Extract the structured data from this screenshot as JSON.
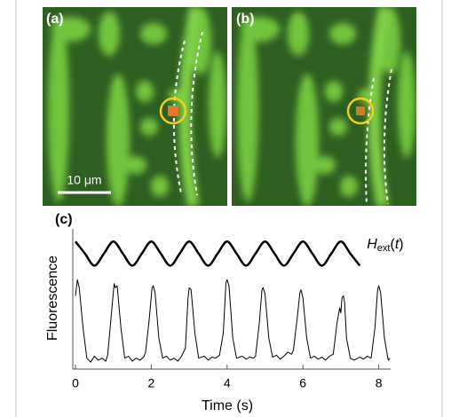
{
  "images": {
    "a": {
      "label": "(a)",
      "scale_bar": "10 μm"
    },
    "b": {
      "label": "(b)"
    }
  },
  "chart_data": {
    "type": "line",
    "panel_label": "(c)",
    "xlabel": "Time (s)",
    "ylabel": "Fluorescence",
    "xlim": [
      0,
      8.3
    ],
    "xticks": [
      0,
      2,
      4,
      6,
      8
    ],
    "ylim": [
      0,
      1.35
    ],
    "grid": false,
    "series": [
      {
        "color": "#000000",
        "x": [
          0,
          0.05,
          0.1,
          0.2,
          0.3,
          0.4,
          0.5,
          0.6,
          0.7,
          0.8,
          0.85,
          0.95,
          1.02,
          1.05,
          1.1,
          1.2,
          1.3,
          1.4,
          1.5,
          1.6,
          1.7,
          1.8,
          1.85,
          1.95,
          2.02,
          2.05,
          2.1,
          2.2,
          2.3,
          2.4,
          2.5,
          2.6,
          2.7,
          2.8,
          2.9,
          2.97,
          3.0,
          3.05,
          3.15,
          3.25,
          3.4,
          3.5,
          3.6,
          3.7,
          3.8,
          3.9,
          3.97,
          4.0,
          4.05,
          4.15,
          4.25,
          4.4,
          4.5,
          4.6,
          4.7,
          4.75,
          4.85,
          4.92,
          4.95,
          5.0,
          5.1,
          5.2,
          5.3,
          5.4,
          5.5,
          5.6,
          5.7,
          5.75,
          5.85,
          5.92,
          5.95,
          6.0,
          6.1,
          6.2,
          6.3,
          6.4,
          6.5,
          6.6,
          6.7,
          6.8,
          6.9,
          6.97,
          7.0,
          7.03,
          7.07,
          7.1,
          7.15,
          7.25,
          7.35,
          7.5,
          7.6,
          7.7,
          7.8,
          7.9,
          7.97,
          8.0,
          8.05,
          8.15,
          8.25,
          8.3
        ],
        "values": [
          0.72,
          0.88,
          0.8,
          0.4,
          0.1,
          0.06,
          0.12,
          0.08,
          0.1,
          0.07,
          0.13,
          0.55,
          0.84,
          0.8,
          0.82,
          0.4,
          0.1,
          0.12,
          0.07,
          0.1,
          0.08,
          0.11,
          0.16,
          0.5,
          0.8,
          0.82,
          0.75,
          0.3,
          0.1,
          0.12,
          0.08,
          0.1,
          0.07,
          0.12,
          0.2,
          0.7,
          0.8,
          0.78,
          0.35,
          0.1,
          0.12,
          0.08,
          0.11,
          0.1,
          0.13,
          0.35,
          0.85,
          0.88,
          0.82,
          0.3,
          0.1,
          0.12,
          0.09,
          0.11,
          0.1,
          0.12,
          0.45,
          0.78,
          0.8,
          0.74,
          0.3,
          0.11,
          0.13,
          0.09,
          0.12,
          0.16,
          0.14,
          0.18,
          0.5,
          0.75,
          0.78,
          0.7,
          0.3,
          0.1,
          0.12,
          0.09,
          0.11,
          0.08,
          0.12,
          0.14,
          0.45,
          0.6,
          0.55,
          0.7,
          0.72,
          0.65,
          0.3,
          0.1,
          0.08,
          0.11,
          0.09,
          0.12,
          0.1,
          0.4,
          0.78,
          0.82,
          0.75,
          0.3,
          0.08,
          0.1
        ]
      },
      {
        "label": {
          "main": "H",
          "sub": "ext",
          "open": "(",
          "arg": "t",
          "close": ")"
        },
        "color": "#000000",
        "smooth": true,
        "x": [
          0,
          0.25,
          0.5,
          0.75,
          1,
          1.25,
          1.5,
          1.75,
          2,
          2.25,
          2.5,
          2.75,
          3,
          3.25,
          3.5,
          3.75,
          4,
          4.25,
          4.5,
          4.75,
          5,
          5.25,
          5.5,
          5.75,
          6,
          6.25,
          6.5,
          6.75,
          7,
          7.25,
          7.5
        ],
        "values": [
          1.26,
          1.14,
          1.02,
          1.14,
          1.26,
          1.14,
          1.02,
          1.14,
          1.26,
          1.14,
          1.02,
          1.14,
          1.26,
          1.14,
          1.02,
          1.14,
          1.26,
          1.14,
          1.02,
          1.14,
          1.26,
          1.14,
          1.02,
          1.14,
          1.26,
          1.14,
          1.02,
          1.14,
          1.26,
          1.14,
          1.02
        ]
      }
    ]
  }
}
